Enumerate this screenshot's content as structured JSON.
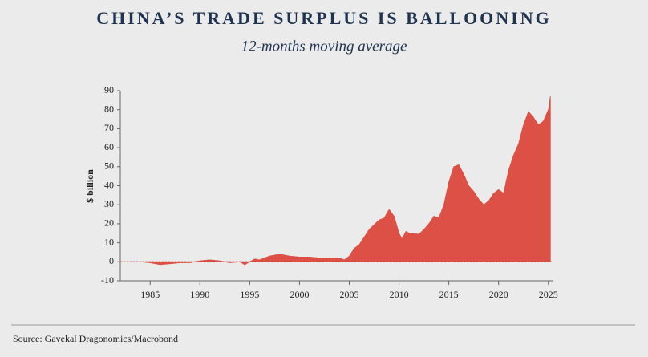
{
  "chart_data": {
    "type": "area",
    "title": "CHINA’S TRADE SURPLUS IS BALLOONING",
    "subtitle": "12-months moving average",
    "y_label": "$ billion",
    "source": "Source: Gavekal Dragonomics/Macrobond",
    "color": "#dc5045",
    "x": [
      1982,
      1983,
      1984,
      1985,
      1986,
      1987,
      1988,
      1989,
      1990,
      1991,
      1992,
      1993,
      1994,
      1994.5,
      1995,
      1995.5,
      1996,
      1997,
      1998,
      1999,
      2000,
      2001,
      2002,
      2003,
      2004,
      2004.5,
      2005,
      2005.5,
      2006,
      2007,
      2008,
      2008.5,
      2009,
      2009.5,
      2010,
      2010.3,
      2010.7,
      2011,
      2012,
      2012.5,
      2013,
      2013.5,
      2014,
      2014.5,
      2015,
      2015.5,
      2016,
      2016.5,
      2017,
      2017.5,
      2018,
      2018.5,
      2019,
      2019.5,
      2020,
      2020.5,
      2021,
      2021.5,
      2022,
      2022.5,
      2023,
      2023.5,
      2024,
      2024.5,
      2025,
      2025.2
    ],
    "values": [
      0,
      0,
      0,
      -0.5,
      -1.5,
      -1,
      -0.5,
      -0.5,
      0.5,
      1,
      0.5,
      -0.5,
      0,
      -1.5,
      0,
      1.5,
      1,
      3,
      4,
      3,
      2.5,
      2.5,
      2,
      2,
      2,
      1,
      3,
      7,
      9,
      17,
      22,
      23,
      27.5,
      24,
      15,
      12,
      16,
      15,
      14.5,
      17,
      20,
      24,
      23,
      30,
      42,
      50,
      51,
      46,
      40,
      37,
      33,
      30,
      32,
      36,
      38,
      36,
      48,
      56,
      62,
      72,
      79,
      76,
      72,
      74,
      80,
      87
    ],
    "xlim": [
      1982,
      2025.5
    ],
    "xticks": [
      1985,
      1990,
      1995,
      2000,
      2005,
      2010,
      2015,
      2020,
      2025
    ],
    "ylim": [
      -10,
      90
    ],
    "yticks": [
      -10,
      0,
      10,
      20,
      30,
      40,
      50,
      60,
      70,
      80,
      90
    ]
  }
}
